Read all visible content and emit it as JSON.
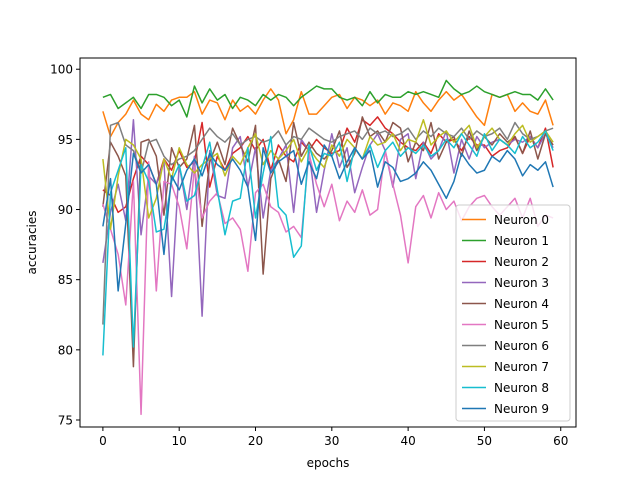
{
  "chart_data": {
    "type": "line",
    "title": "",
    "xlabel": "epochs",
    "ylabel": "accuracies",
    "xlim": [
      -3,
      62
    ],
    "ylim": [
      74.5,
      100.8
    ],
    "xticks": [
      0,
      10,
      20,
      30,
      40,
      50,
      60
    ],
    "yticks": [
      75,
      80,
      85,
      90,
      95,
      100
    ],
    "grid": false,
    "legend_position": "lower-right",
    "series": [
      {
        "name": "Neuron 0",
        "color": "#ff7f0e",
        "values": [
          97.0,
          95.2,
          96.2,
          96.8,
          97.8,
          96.8,
          96.4,
          97.5,
          97.0,
          97.8,
          98.0,
          98.0,
          98.4,
          96.8,
          97.8,
          97.6,
          96.4,
          97.8,
          97.0,
          97.4,
          96.8,
          97.8,
          98.6,
          97.8,
          95.4,
          96.4,
          98.4,
          96.8,
          96.8,
          97.4,
          98.0,
          98.2,
          97.2,
          98.0,
          97.8,
          97.4,
          97.8,
          96.8,
          97.6,
          97.4,
          97.0,
          98.4,
          97.6,
          97.0,
          97.8,
          98.4,
          97.8,
          98.2,
          97.4,
          96.6,
          96.0,
          98.2,
          98.0,
          98.2,
          97.0,
          97.6,
          97.0,
          96.8,
          97.8,
          96.0
        ]
      },
      {
        "name": "Neuron 1",
        "color": "#2ca02c",
        "values": [
          98.0,
          98.2,
          97.2,
          97.6,
          98.0,
          97.2,
          98.2,
          98.2,
          98.0,
          97.4,
          97.8,
          96.6,
          98.8,
          97.6,
          98.6,
          97.8,
          98.2,
          97.2,
          98.0,
          97.8,
          97.4,
          98.2,
          97.8,
          98.2,
          98.0,
          97.4,
          98.0,
          98.4,
          98.8,
          98.6,
          98.6,
          98.0,
          97.8,
          98.0,
          97.4,
          98.4,
          97.6,
          98.2,
          98.0,
          98.0,
          98.4,
          98.2,
          98.4,
          98.2,
          98.0,
          99.2,
          98.6,
          98.2,
          98.4,
          98.8,
          98.4,
          98.2,
          98.0,
          98.2,
          98.4,
          98.2,
          98.2,
          97.8,
          98.6,
          97.8
        ]
      },
      {
        "name": "Neuron 2",
        "color": "#d62728",
        "values": [
          91.4,
          91.0,
          89.8,
          90.2,
          92.2,
          93.8,
          93.2,
          91.8,
          93.6,
          92.8,
          94.2,
          93.0,
          93.4,
          96.2,
          91.6,
          93.8,
          92.8,
          94.0,
          94.4,
          95.2,
          94.2,
          95.0,
          92.8,
          94.6,
          93.8,
          93.4,
          94.8,
          94.2,
          95.0,
          94.4,
          94.0,
          94.2,
          95.8,
          94.8,
          96.4,
          96.0,
          96.6,
          95.8,
          95.4,
          94.8,
          94.4,
          94.2,
          94.8,
          94.0,
          95.4,
          94.8,
          95.0,
          94.2,
          95.2,
          94.6,
          94.6,
          93.8,
          94.2,
          94.4,
          95.2,
          94.0,
          95.2,
          94.4,
          95.8,
          93.0
        ]
      },
      {
        "name": "Neuron 3",
        "color": "#9467bd",
        "values": [
          86.2,
          89.8,
          91.8,
          89.2,
          96.4,
          88.2,
          92.4,
          91.8,
          93.4,
          83.8,
          93.2,
          90.0,
          93.8,
          82.4,
          94.2,
          91.0,
          90.8,
          94.4,
          95.2,
          91.6,
          94.4,
          89.4,
          92.8,
          93.6,
          94.6,
          89.8,
          95.0,
          94.2,
          89.8,
          92.8,
          95.4,
          93.0,
          94.4,
          91.2,
          93.0,
          94.6,
          95.4,
          94.2,
          91.6,
          95.0,
          95.4,
          92.2,
          94.8,
          93.6,
          94.2,
          95.6,
          92.6,
          95.0,
          93.6,
          95.2,
          94.4,
          94.8,
          95.0,
          94.6,
          95.0,
          94.8,
          95.2,
          94.4,
          95.4,
          94.4
        ]
      },
      {
        "name": "Neuron 4",
        "color": "#8c564b",
        "values": [
          90.2,
          94.8,
          93.8,
          92.4,
          78.8,
          94.8,
          95.0,
          93.8,
          89.6,
          94.4,
          93.0,
          93.6,
          96.0,
          88.8,
          93.4,
          94.8,
          93.2,
          95.8,
          94.6,
          93.4,
          96.0,
          85.4,
          92.2,
          93.6,
          92.0,
          96.2,
          93.8,
          94.8,
          94.0,
          93.6,
          94.2,
          95.6,
          93.0,
          94.0,
          96.6,
          95.2,
          95.6,
          94.8,
          96.2,
          95.8,
          93.4,
          94.8,
          94.2,
          96.2,
          93.6,
          94.8,
          95.2,
          93.8,
          95.6,
          94.2,
          95.2,
          94.6,
          95.4,
          94.8,
          95.2,
          94.0,
          95.6,
          93.6,
          95.4,
          94.6
        ]
      },
      {
        "name": "Neuron 5",
        "color": "#e377c2",
        "values": [
          90.4,
          88.6,
          86.8,
          83.2,
          92.0,
          75.4,
          93.4,
          84.2,
          92.0,
          91.8,
          90.2,
          87.2,
          93.0,
          89.4,
          90.6,
          91.2,
          89.0,
          89.4,
          88.6,
          85.6,
          91.2,
          91.8,
          90.2,
          89.8,
          88.4,
          88.8,
          88.0,
          94.0,
          91.8,
          90.2,
          91.8,
          89.2,
          90.6,
          89.8,
          91.4,
          89.6,
          90.0,
          94.2,
          91.8,
          89.6,
          86.2,
          90.2,
          91.0,
          89.4,
          91.2,
          90.0,
          90.6,
          89.2,
          90.2,
          90.8,
          91.0,
          90.2,
          89.6,
          90.2,
          90.8,
          89.4,
          90.8,
          88.8,
          89.6,
          89.4
        ]
      },
      {
        "name": "Neuron 6",
        "color": "#7f7f7f",
        "values": [
          81.8,
          96.0,
          96.2,
          94.6,
          94.2,
          92.6,
          94.8,
          95.0,
          93.8,
          93.2,
          93.6,
          93.8,
          94.2,
          95.0,
          95.8,
          95.2,
          94.8,
          95.4,
          94.6,
          95.0,
          95.2,
          94.8,
          95.0,
          95.6,
          94.6,
          95.2,
          95.0,
          95.8,
          95.4,
          95.0,
          94.8,
          95.2,
          95.4,
          95.6,
          95.0,
          95.8,
          95.4,
          95.6,
          95.2,
          95.4,
          95.8,
          95.0,
          95.6,
          95.2,
          95.8,
          95.4,
          95.2,
          95.8,
          95.0,
          95.6,
          95.2,
          95.4,
          95.8,
          95.0,
          96.2,
          95.4,
          95.0,
          95.2,
          95.6,
          95.8
        ]
      },
      {
        "name": "Neuron 7",
        "color": "#bcbd22",
        "values": [
          93.6,
          88.6,
          92.4,
          95.0,
          94.6,
          93.6,
          89.4,
          90.8,
          93.6,
          92.2,
          94.4,
          93.2,
          92.6,
          93.2,
          93.6,
          94.0,
          92.4,
          93.8,
          93.2,
          94.4,
          95.4,
          93.2,
          94.2,
          93.6,
          94.2,
          95.0,
          93.4,
          94.4,
          93.6,
          93.0,
          94.6,
          93.8,
          95.0,
          94.4,
          93.6,
          95.2,
          94.6,
          94.8,
          95.4,
          94.2,
          95.0,
          94.8,
          96.4,
          94.6,
          95.2,
          95.6,
          94.8,
          95.4,
          96.0,
          94.4,
          95.2,
          95.8,
          95.0,
          94.6,
          95.4,
          96.0,
          94.8,
          95.2,
          95.6,
          94.8
        ]
      },
      {
        "name": "Neuron 8",
        "color": "#17becf",
        "values": [
          79.6,
          91.2,
          92.8,
          94.4,
          80.2,
          93.2,
          92.0,
          88.4,
          88.6,
          92.0,
          93.2,
          90.6,
          91.0,
          93.0,
          94.8,
          91.4,
          88.2,
          90.6,
          90.8,
          94.4,
          89.4,
          92.6,
          95.2,
          90.2,
          89.6,
          86.6,
          87.4,
          94.6,
          92.8,
          94.0,
          93.8,
          94.8,
          92.0,
          94.4,
          93.6,
          94.6,
          93.0,
          94.2,
          94.8,
          93.8,
          94.4,
          94.0,
          94.6,
          93.8,
          94.2,
          95.0,
          94.4,
          95.4,
          94.6,
          93.8,
          95.4,
          94.2,
          95.0,
          94.6,
          94.0,
          95.2,
          94.4,
          94.8,
          95.6,
          94.2
        ]
      },
      {
        "name": "Neuron 9",
        "color": "#1f77b4",
        "values": [
          88.8,
          92.2,
          84.2,
          89.0,
          94.0,
          92.6,
          93.2,
          91.8,
          86.8,
          92.4,
          91.4,
          92.8,
          93.6,
          92.4,
          94.0,
          93.2,
          92.8,
          93.6,
          92.8,
          91.6,
          87.8,
          94.4,
          92.6,
          93.4,
          93.8,
          94.2,
          91.8,
          93.4,
          92.2,
          94.6,
          93.8,
          92.2,
          93.4,
          94.4,
          93.6,
          94.2,
          91.6,
          93.4,
          93.0,
          92.0,
          92.2,
          92.6,
          93.4,
          92.8,
          91.8,
          90.8,
          92.0,
          94.0,
          93.2,
          92.6,
          92.8,
          93.8,
          93.4,
          94.2,
          93.6,
          92.4,
          93.2,
          92.8,
          93.4,
          91.6
        ]
      }
    ]
  }
}
